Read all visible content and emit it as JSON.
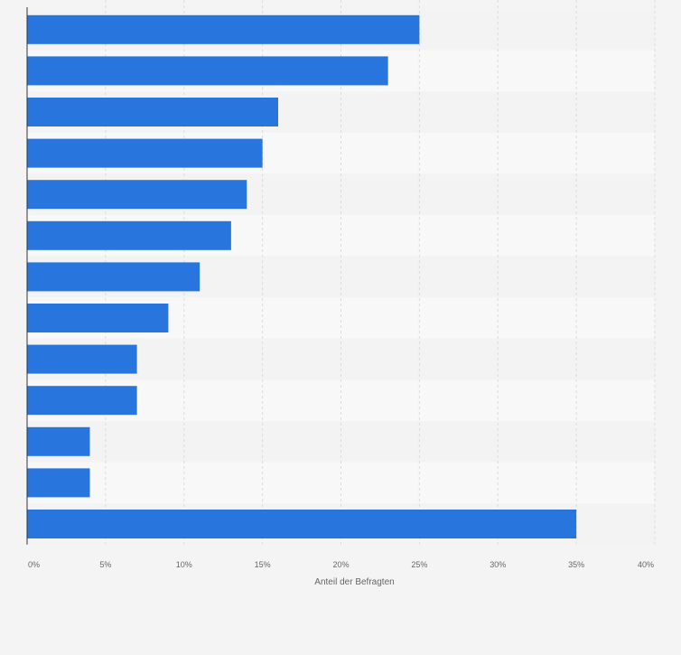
{
  "chart_data": {
    "type": "bar",
    "orientation": "horizontal",
    "categories": [
      "",
      "",
      "",
      "",
      "",
      "",
      "",
      "",
      "",
      "",
      "",
      "",
      ""
    ],
    "values": [
      25,
      23,
      16,
      15,
      14,
      13,
      11,
      9,
      7,
      7,
      4,
      4,
      35
    ],
    "xlabel": "Anteil der Befragten",
    "xlim": [
      0,
      40
    ],
    "xticks": [
      0,
      5,
      10,
      15,
      20,
      25,
      30,
      35,
      40
    ],
    "xtick_labels": [
      "0%",
      "5%",
      "10%",
      "15%",
      "20%",
      "25%",
      "30%",
      "35%",
      "40%"
    ],
    "grid": true,
    "legend": "none"
  },
  "colors": {
    "bar": "#2876dd",
    "band_dark": "#f3f3f3",
    "band_light": "#f8f8f8",
    "grid": "#dcdcdc",
    "axis": "#333333",
    "tick_text": "#666666"
  }
}
